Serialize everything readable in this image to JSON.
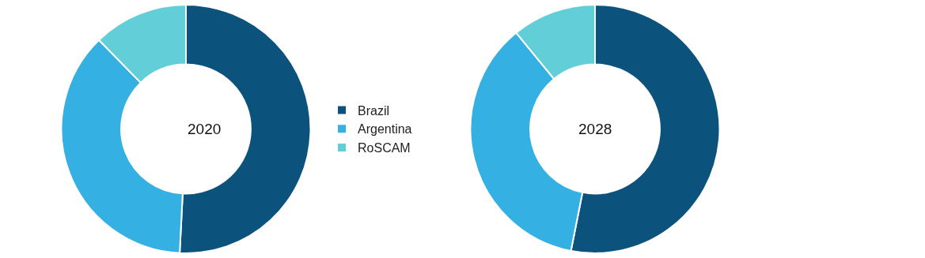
{
  "chart_data": {
    "type": "donut",
    "categories": [
      "Brazil",
      "Argentina",
      "RoSCAM"
    ],
    "colors": [
      "#0b527c",
      "#35b0e2",
      "#62cfd8"
    ],
    "legend": "right",
    "series": [
      {
        "name": "2020",
        "values": [
          50.8,
          36.9,
          12.3
        ]
      },
      {
        "name": "2028",
        "values": [
          53.1,
          36.0,
          10.9
        ]
      }
    ]
  }
}
